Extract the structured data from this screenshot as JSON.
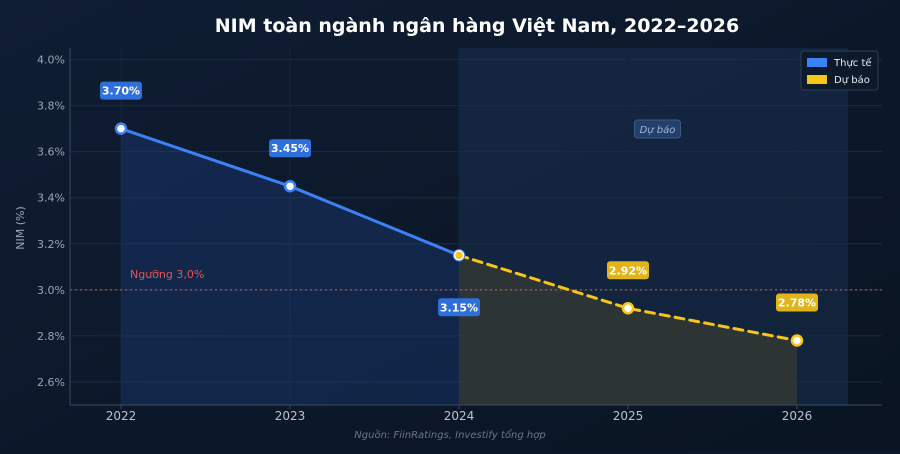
{
  "chart_data": {
    "type": "line",
    "title": "NIM toàn ngành ngân hàng Việt Nam, 2022–2026",
    "ylabel": "NIM (%)",
    "xlabel": "",
    "x": [
      "2022",
      "2023",
      "2024",
      "2025",
      "2026"
    ],
    "ylim": [
      2.5,
      4.05
    ],
    "yticks": [
      2.6,
      2.8,
      3.0,
      3.2,
      3.4,
      3.6,
      3.8,
      4.0
    ],
    "ytick_labels": [
      "2.6%",
      "2.8%",
      "3.0%",
      "3.2%",
      "3.4%",
      "3.6%",
      "3.8%",
      "4.0%"
    ],
    "grid": true,
    "legend_position": "top-right",
    "series": [
      {
        "name": "Thực tế",
        "style": "solid",
        "color": "#3b82f6",
        "points": [
          {
            "x": "2022",
            "y": 3.7,
            "label": "3.70%",
            "label_pos": "above"
          },
          {
            "x": "2023",
            "y": 3.45,
            "label": "3.45%",
            "label_pos": "above"
          },
          {
            "x": "2024",
            "y": 3.15,
            "label": "3.15%",
            "label_pos": "below"
          }
        ]
      },
      {
        "name": "Dự báo",
        "style": "dashed",
        "color": "#f5c518",
        "points": [
          {
            "x": "2024",
            "y": 3.15,
            "label": null
          },
          {
            "x": "2025",
            "y": 2.92,
            "label": "2.92%",
            "label_pos": "above"
          },
          {
            "x": "2026",
            "y": 2.78,
            "label": "2.78%",
            "label_pos": "above"
          }
        ]
      }
    ],
    "reference_line": {
      "y": 3.0,
      "label": "Ngưỡng 3,0%",
      "color": "#e05757"
    },
    "forecast_region": {
      "from": "2024",
      "label": "Dự báo"
    },
    "source": "Nguồn: FiinRatings, Investify tổng hợp"
  }
}
